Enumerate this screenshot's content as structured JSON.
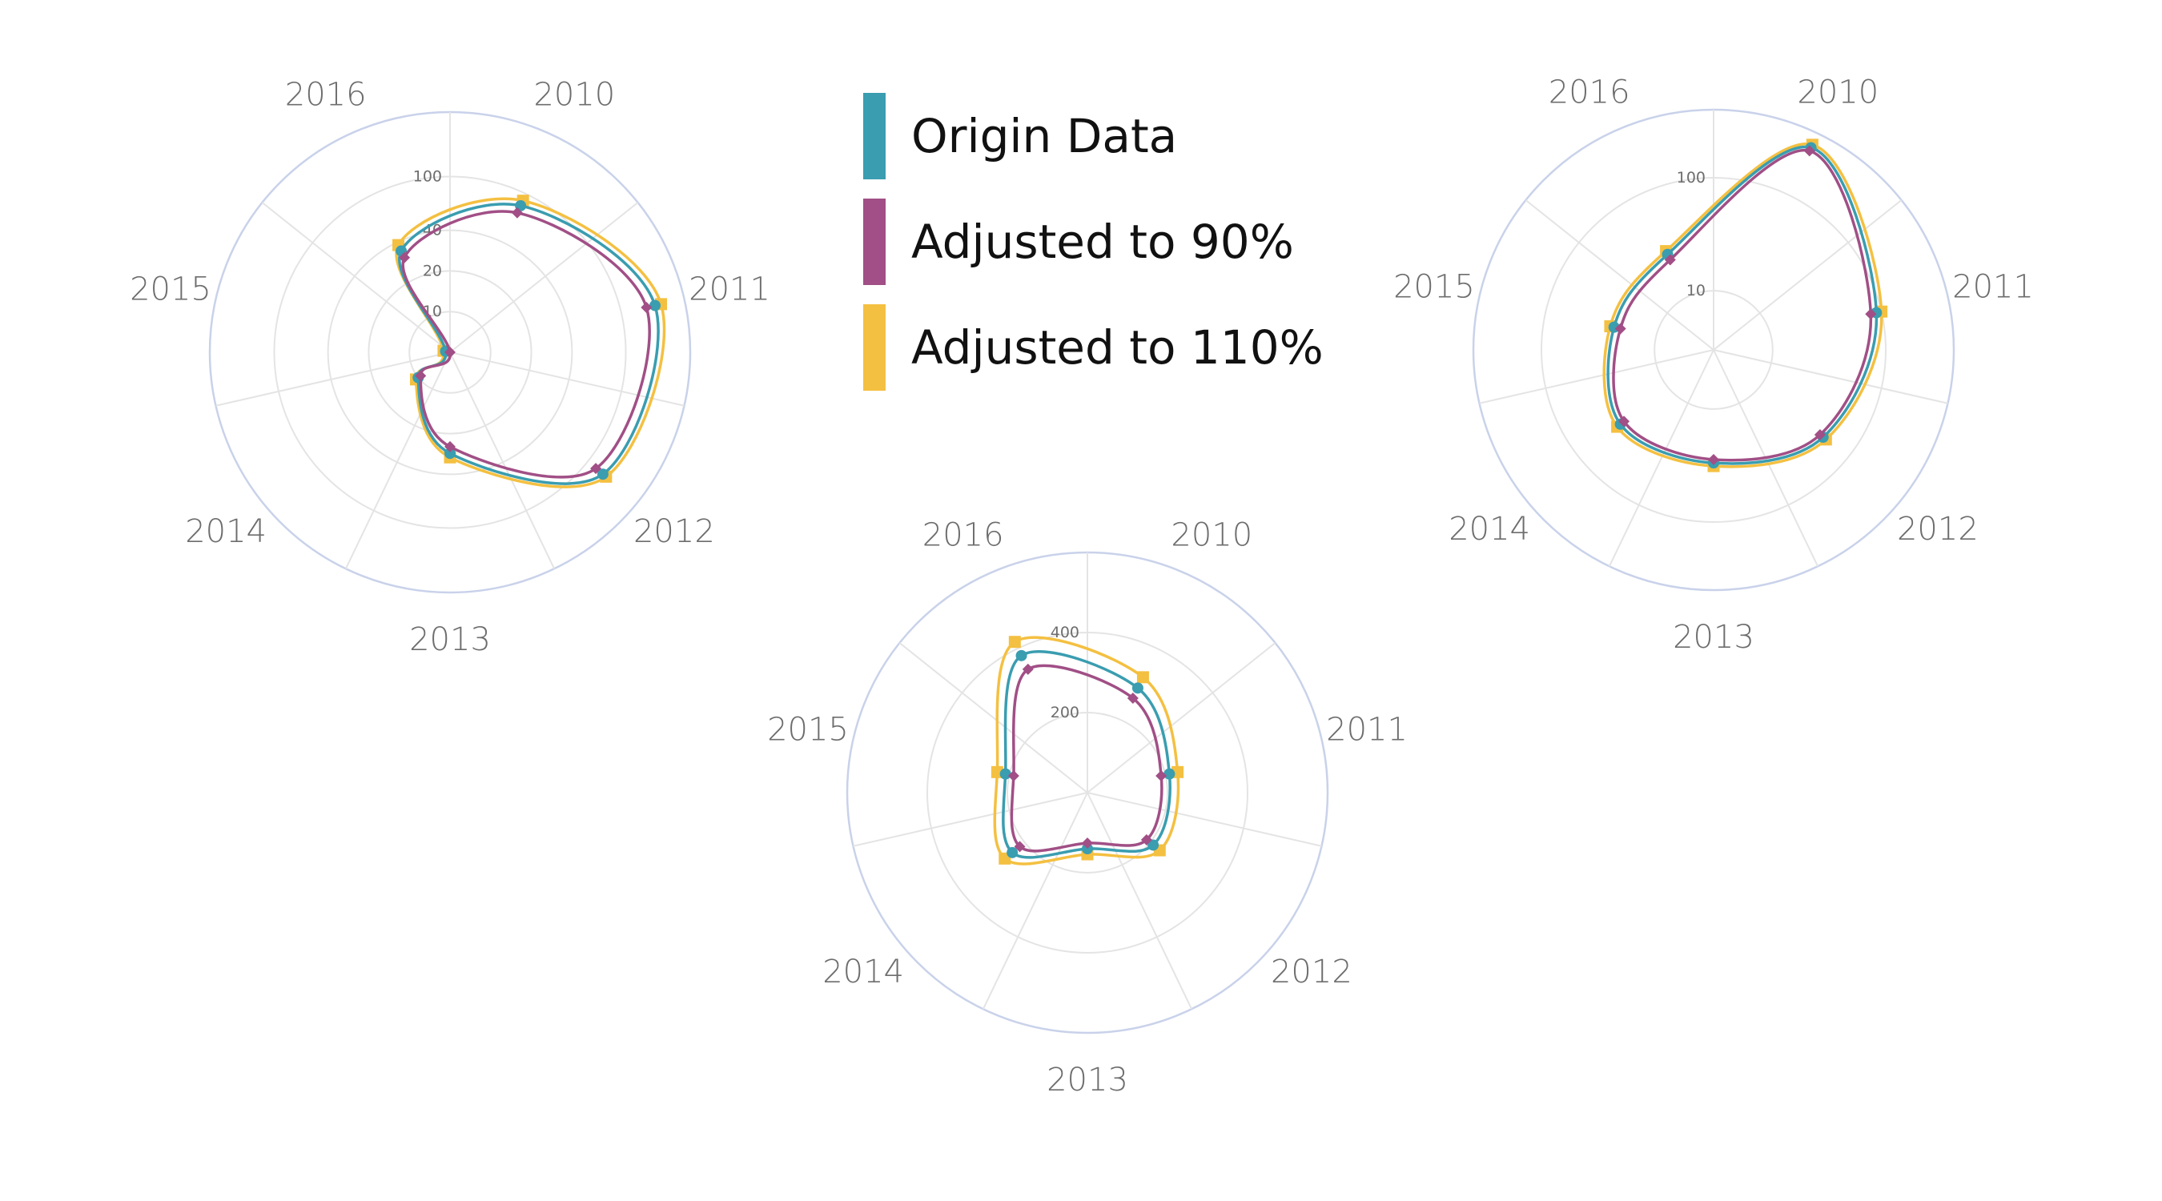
{
  "colors": {
    "origin": "#3a9db0",
    "adjusted_90": "#a14f86",
    "adjusted_110": "#f4c041",
    "outer_ring": "#c9d2ea",
    "grid": "#e4e4e4"
  },
  "legend": {
    "items": [
      {
        "label": "Origin Data",
        "color": "#3a9db0"
      },
      {
        "label": "Adjusted to 90%",
        "color": "#a14f86"
      },
      {
        "label": "Adjusted to 110%",
        "color": "#f4c041"
      }
    ]
  },
  "chart_data": [
    {
      "type": "radar",
      "title": "",
      "categories": [
        "2010",
        "2011",
        "2012",
        "2013",
        "2014",
        "2015",
        "2016"
      ],
      "radial_scale": "log",
      "radial_range": [
        5,
        300
      ],
      "radial_ticks": [
        10,
        20,
        40,
        100
      ],
      "series": [
        {
          "name": "Origin Data",
          "values": [
            80,
            180,
            140,
            28,
            10,
            5.4,
            34
          ]
        },
        {
          "name": "Adjusted to 90%",
          "values": [
            70,
            155,
            120,
            25,
            9.5,
            5.0,
            30
          ]
        },
        {
          "name": "Adjusted to 110%",
          "values": [
            88,
            200,
            150,
            30,
            10.5,
            5.6,
            38
          ]
        }
      ]
    },
    {
      "type": "radar",
      "title": "",
      "categories": [
        "2010",
        "2011",
        "2012",
        "2013",
        "2014",
        "2015",
        "2016"
      ],
      "radial_scale": "log",
      "radial_range": [
        3,
        400
      ],
      "radial_ticks": [
        10,
        100
      ],
      "series": [
        {
          "name": "Origin Data",
          "values": [
            290,
            90,
            52,
            30,
            34,
            24,
            26
          ]
        },
        {
          "name": "Adjusted to 90%",
          "values": [
            270,
            80,
            48,
            28,
            31,
            21,
            23
          ]
        },
        {
          "name": "Adjusted to 110%",
          "values": [
            310,
            100,
            56,
            32,
            37,
            26,
            28
          ]
        }
      ]
    },
    {
      "type": "radar",
      "title": "",
      "categories": [
        "2010",
        "2011",
        "2012",
        "2013",
        "2014",
        "2015",
        "2016"
      ],
      "radial_scale": "linear",
      "radial_range": [
        0,
        600
      ],
      "radial_ticks": [
        200,
        400
      ],
      "series": [
        {
          "name": "Origin Data",
          "values": [
            290,
            210,
            210,
            140,
            240,
            210,
            380
          ]
        },
        {
          "name": "Adjusted to 90%",
          "values": [
            262,
            189,
            189,
            126,
            216,
            189,
            342
          ]
        },
        {
          "name": "Adjusted to 110%",
          "values": [
            320,
            231,
            231,
            154,
            264,
            231,
            418
          ]
        }
      ]
    }
  ]
}
